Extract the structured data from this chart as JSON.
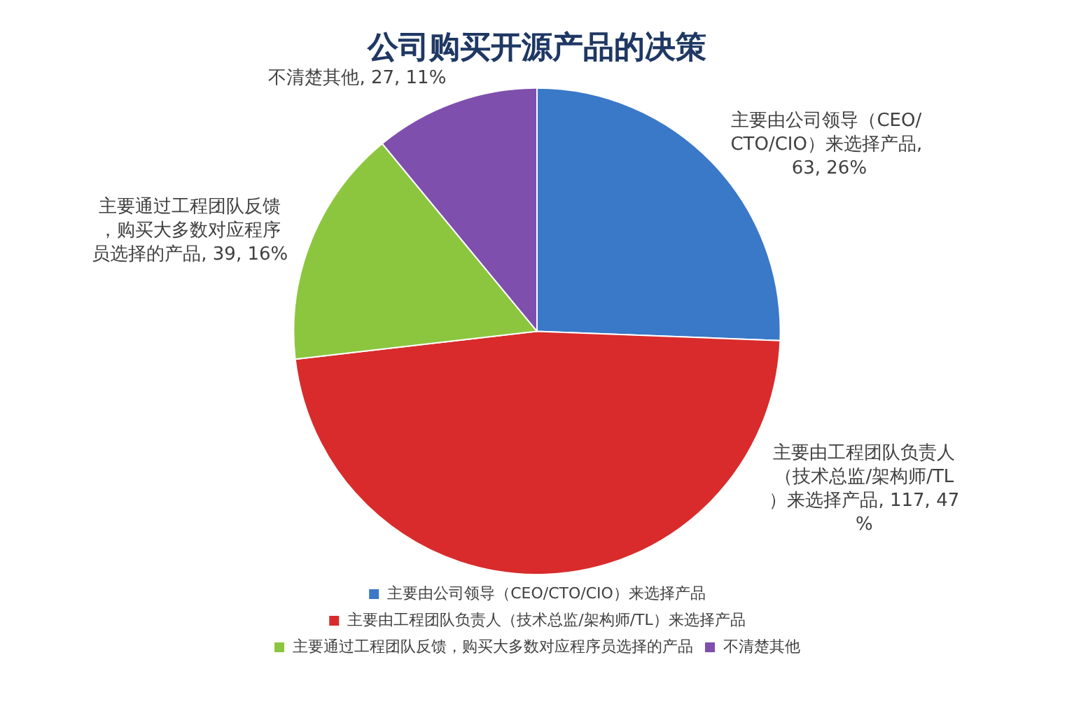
{
  "chart_data": {
    "type": "pie",
    "title": "公司购买开源产品的决策",
    "categories": [
      "主要由公司领导（CEO/CTO/CIO）来选择产品",
      "主要由工程团队负责人（技术总监/架构师/TL）来选择产品",
      "主要通过工程团队反馈，购买大多数对应程序员选择的产品",
      "不清楚其他"
    ],
    "values": [
      63,
      117,
      39,
      27
    ],
    "colors": [
      "#3a78c8",
      "#d92b2b",
      "#8cc63f",
      "#7e4fad"
    ],
    "value_labels": [
      "主要由公司领导（CEO/CTO/CIO）来选择产品, 63, 26%",
      "主要由工程团队负责人（技术总监/架构师/TL）来选择产品, 117, 47%",
      "主要通过工程团队反馈，购买大多数对应程序员选择的产品, 39, 16%",
      "不清楚其他, 27, 11%"
    ],
    "legend": "bottom"
  }
}
